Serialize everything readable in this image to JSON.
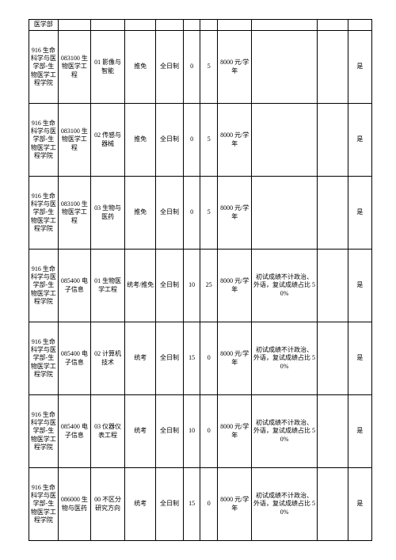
{
  "stubRow": {
    "dept": "医学部"
  },
  "rows": [
    {
      "dept": "916 生命科学与医学部-生物医学工程学院",
      "code": "083100 生物医学工程",
      "dir": "01 影像与智能",
      "exam": "推免",
      "mode": "全日制",
      "n1": "0",
      "n2": "5",
      "fee": "8000 元/学年",
      "note": "",
      "blank": "",
      "yes": "是"
    },
    {
      "dept": "916 生命科学与医学部-生物医学工程学院",
      "code": "083100 生物医学工程",
      "dir": "02 传感与器械",
      "exam": "推免",
      "mode": "全日制",
      "n1": "0",
      "n2": "5",
      "fee": "8000 元/学年",
      "note": "",
      "blank": "",
      "yes": "是"
    },
    {
      "dept": "916 生命科学与医学部-生物医学工程学院",
      "code": "083100 生物医学工程",
      "dir": "03 生物与医药",
      "exam": "推免",
      "mode": "全日制",
      "n1": "0",
      "n2": "5",
      "fee": "8000 元/学年",
      "note": "",
      "blank": "",
      "yes": "是"
    },
    {
      "dept": "916 生命科学与医学部-生物医学工程学院",
      "code": "085400 电子信息",
      "dir": "01 生物医学工程",
      "exam": "统考/推免",
      "mode": "全日制",
      "n1": "10",
      "n2": "25",
      "fee": "8000 元/学年",
      "note": "初试成绩不计政治、外语，复试成绩占比 50%",
      "blank": "",
      "yes": "是"
    },
    {
      "dept": "916 生命科学与医学部-生物医学工程学院",
      "code": "085400 电子信息",
      "dir": "02 计算机技术",
      "exam": "统考",
      "mode": "全日制",
      "n1": "15",
      "n2": "0",
      "fee": "8000 元/学年",
      "note": "初试成绩不计政治、外语，复试成绩占比 50%",
      "blank": "",
      "yes": "是"
    },
    {
      "dept": "916 生命科学与医学部-生物医学工程学院",
      "code": "085400 电子信息",
      "dir": "03 仪器仪表工程",
      "exam": "统考",
      "mode": "全日制",
      "n1": "10",
      "n2": "0",
      "fee": "8000 元/学年",
      "note": "初试成绩不计政治、外语，复试成绩占比 50%",
      "blank": "",
      "yes": "是"
    },
    {
      "dept": "916 生命科学与医学部-生物医学工程学院",
      "code": "086000 生物与医药",
      "dir": "00 不区分研究方向",
      "exam": "统考",
      "mode": "全日制",
      "n1": "15",
      "n2": "0",
      "fee": "8000 元/学年",
      "note": "初试成绩不计政治、外语，复试成绩占比 50%",
      "blank": "",
      "yes": "是"
    }
  ]
}
